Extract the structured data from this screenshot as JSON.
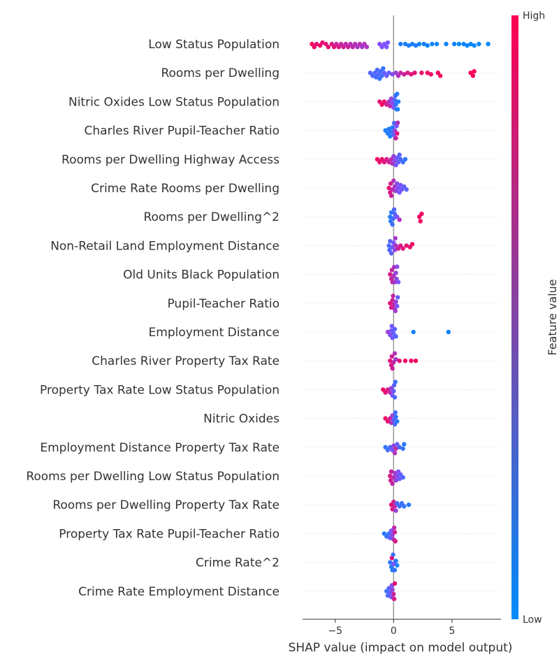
{
  "chart_data": {
    "type": "scatter",
    "subtype": "shap-beeswarm-summary",
    "title": "",
    "xlabel": "SHAP value (impact on model output)",
    "ylabel": "",
    "xlim": [
      -7.8,
      9.2
    ],
    "xticks": [
      -5,
      0,
      5
    ],
    "xtick_labels": [
      "−5",
      "0",
      "5"
    ],
    "grid": "dotted row guides",
    "zero_line": true,
    "colorbar": {
      "label": "Feature value",
      "high_label": "High",
      "low_label": "Low",
      "low_color": "#008bfb",
      "high_color": "#ff0052"
    },
    "features": [
      {
        "name": "Low Status Population",
        "points": [
          [
            -7.0,
            0.95
          ],
          [
            -6.8,
            0.92
          ],
          [
            -6.6,
            0.9
          ],
          [
            -6.3,
            0.95
          ],
          [
            -6.1,
            0.9
          ],
          [
            -5.8,
            0.88
          ],
          [
            -5.6,
            0.92
          ],
          [
            -5.3,
            0.85
          ],
          [
            -5.1,
            0.88
          ],
          [
            -4.9,
            0.8
          ],
          [
            -4.7,
            0.85
          ],
          [
            -4.5,
            0.78
          ],
          [
            -4.3,
            0.82
          ],
          [
            -4.1,
            0.75
          ],
          [
            -3.9,
            0.8
          ],
          [
            -3.7,
            0.72
          ],
          [
            -3.5,
            0.75
          ],
          [
            -3.3,
            0.7
          ],
          [
            -3.1,
            0.68
          ],
          [
            -2.9,
            0.72
          ],
          [
            -2.7,
            0.65
          ],
          [
            -2.5,
            0.7
          ],
          [
            -2.3,
            0.68
          ],
          [
            -1.2,
            0.55
          ],
          [
            -1.0,
            0.52
          ],
          [
            -0.8,
            0.5
          ],
          [
            -0.6,
            0.5
          ],
          [
            -0.5,
            0.48
          ],
          [
            0.6,
            0.15
          ],
          [
            1.0,
            0.1
          ],
          [
            1.3,
            0.12
          ],
          [
            1.6,
            0.08
          ],
          [
            1.9,
            0.12
          ],
          [
            2.2,
            0.05
          ],
          [
            2.6,
            0.1
          ],
          [
            2.9,
            0.05
          ],
          [
            3.3,
            0.08
          ],
          [
            3.7,
            0.05
          ],
          [
            4.5,
            0.04
          ],
          [
            5.2,
            0.05
          ],
          [
            5.6,
            0.03
          ],
          [
            6.0,
            0.04
          ],
          [
            6.3,
            0.03
          ],
          [
            6.6,
            0.02
          ],
          [
            6.9,
            0.02
          ],
          [
            7.3,
            0.03
          ],
          [
            8.1,
            0.02
          ]
        ]
      },
      {
        "name": "Rooms per Dwelling",
        "points": [
          [
            -2.0,
            0.35
          ],
          [
            -1.8,
            0.3
          ],
          [
            -1.6,
            0.33
          ],
          [
            -1.5,
            0.28
          ],
          [
            -1.4,
            0.3
          ],
          [
            -1.3,
            0.35
          ],
          [
            -1.2,
            0.22
          ],
          [
            -1.1,
            0.28
          ],
          [
            -1.0,
            0.25
          ],
          [
            -0.9,
            0.2
          ],
          [
            -0.8,
            0.4
          ],
          [
            -0.6,
            0.45
          ],
          [
            -0.4,
            0.4
          ],
          [
            -0.1,
            0.55
          ],
          [
            0.2,
            0.62
          ],
          [
            0.4,
            0.7
          ],
          [
            0.6,
            0.75
          ],
          [
            0.9,
            0.8
          ],
          [
            1.2,
            0.85
          ],
          [
            1.5,
            0.88
          ],
          [
            1.8,
            0.9
          ],
          [
            2.4,
            0.92
          ],
          [
            2.9,
            0.95
          ],
          [
            3.2,
            0.93
          ],
          [
            3.8,
            0.95
          ],
          [
            4.0,
            0.96
          ],
          [
            6.6,
            0.98
          ],
          [
            6.8,
            0.97
          ],
          [
            6.9,
            0.99
          ]
        ]
      },
      {
        "name": "Nitric Oxides Low Status Population",
        "points": [
          [
            -1.2,
            0.9
          ],
          [
            -1.0,
            0.95
          ],
          [
            -0.8,
            0.92
          ],
          [
            -0.6,
            0.8
          ],
          [
            -0.4,
            0.7
          ],
          [
            -0.3,
            0.75
          ],
          [
            -0.2,
            0.6
          ],
          [
            -0.1,
            0.55
          ],
          [
            0.0,
            0.5
          ],
          [
            0.1,
            0.3
          ],
          [
            0.2,
            0.2
          ],
          [
            0.3,
            0.15
          ],
          [
            0.4,
            0.1
          ],
          [
            0.35,
            0.12
          ],
          [
            0.25,
            0.18
          ],
          [
            0.15,
            0.25
          ]
        ]
      },
      {
        "name": "Charles River Pupil-Teacher Ratio",
        "points": [
          [
            -0.7,
            0.1
          ],
          [
            -0.5,
            0.12
          ],
          [
            -0.4,
            0.15
          ],
          [
            -0.3,
            0.1
          ],
          [
            -0.2,
            0.2
          ],
          [
            -0.1,
            0.15
          ],
          [
            0.0,
            0.4
          ],
          [
            0.1,
            0.6
          ],
          [
            0.2,
            0.8
          ],
          [
            0.3,
            0.9
          ],
          [
            0.35,
            0.7
          ],
          [
            0.25,
            0.5
          ],
          [
            0.15,
            0.45
          ],
          [
            0.05,
            0.3
          ]
        ]
      },
      {
        "name": "Rooms per Dwelling Highway Access",
        "points": [
          [
            -1.4,
            0.95
          ],
          [
            -1.2,
            0.9
          ],
          [
            -1.0,
            0.92
          ],
          [
            -0.8,
            0.88
          ],
          [
            -0.6,
            0.85
          ],
          [
            -0.4,
            0.8
          ],
          [
            -0.2,
            0.75
          ],
          [
            -0.1,
            0.7
          ],
          [
            0.0,
            0.6
          ],
          [
            0.2,
            0.5
          ],
          [
            0.4,
            0.4
          ],
          [
            0.6,
            0.3
          ],
          [
            0.8,
            0.25
          ],
          [
            1.0,
            0.2
          ],
          [
            0.5,
            0.35
          ],
          [
            0.3,
            0.45
          ],
          [
            0.1,
            0.55
          ]
        ]
      },
      {
        "name": "Crime Rate Rooms per Dwelling",
        "points": [
          [
            -0.4,
            0.9
          ],
          [
            -0.3,
            0.85
          ],
          [
            -0.2,
            0.8
          ],
          [
            -0.1,
            0.75
          ],
          [
            0.0,
            0.7
          ],
          [
            0.1,
            0.65
          ],
          [
            0.2,
            0.6
          ],
          [
            0.3,
            0.55
          ],
          [
            0.5,
            0.5
          ],
          [
            0.7,
            0.45
          ],
          [
            0.9,
            0.4
          ],
          [
            1.1,
            0.35
          ],
          [
            0.6,
            0.48
          ],
          [
            0.4,
            0.52
          ],
          [
            -0.25,
            0.82
          ]
        ]
      },
      {
        "name": "Rooms per Dwelling^2",
        "points": [
          [
            -0.3,
            0.15
          ],
          [
            -0.2,
            0.2
          ],
          [
            -0.1,
            0.25
          ],
          [
            0.0,
            0.3
          ],
          [
            0.1,
            0.35
          ],
          [
            0.3,
            0.5
          ],
          [
            0.5,
            0.7
          ],
          [
            2.2,
            0.95
          ],
          [
            2.3,
            0.97
          ],
          [
            2.4,
            0.96
          ],
          [
            -0.25,
            0.18
          ],
          [
            0.05,
            0.32
          ]
        ]
      },
      {
        "name": "Non-Retail Land Employment Distance",
        "points": [
          [
            -0.4,
            0.3
          ],
          [
            -0.3,
            0.35
          ],
          [
            -0.2,
            0.4
          ],
          [
            -0.1,
            0.45
          ],
          [
            0.0,
            0.5
          ],
          [
            0.1,
            0.6
          ],
          [
            0.2,
            0.7
          ],
          [
            0.4,
            0.8
          ],
          [
            0.6,
            0.85
          ],
          [
            0.8,
            0.88
          ],
          [
            1.1,
            0.9
          ],
          [
            1.4,
            0.92
          ],
          [
            1.6,
            0.95
          ],
          [
            -0.35,
            0.32
          ],
          [
            0.15,
            0.65
          ]
        ]
      },
      {
        "name": "Old Units Black Population",
        "points": [
          [
            -0.3,
            0.85
          ],
          [
            -0.2,
            0.8
          ],
          [
            -0.1,
            0.75
          ],
          [
            0.0,
            0.7
          ],
          [
            0.1,
            0.65
          ],
          [
            0.2,
            0.6
          ],
          [
            0.3,
            0.55
          ],
          [
            0.4,
            0.5
          ],
          [
            0.25,
            0.58
          ],
          [
            -0.15,
            0.78
          ],
          [
            0.05,
            0.68
          ]
        ]
      },
      {
        "name": "Pupil-Teacher Ratio",
        "points": [
          [
            -0.3,
            0.9
          ],
          [
            -0.2,
            0.85
          ],
          [
            -0.1,
            0.8
          ],
          [
            0.0,
            0.75
          ],
          [
            0.1,
            0.7
          ],
          [
            0.2,
            0.6
          ],
          [
            0.3,
            0.5
          ],
          [
            0.35,
            0.4
          ],
          [
            0.15,
            0.65
          ],
          [
            -0.05,
            0.78
          ]
        ]
      },
      {
        "name": "Employment Distance",
        "points": [
          [
            -0.5,
            0.6
          ],
          [
            -0.3,
            0.55
          ],
          [
            -0.2,
            0.5
          ],
          [
            -0.1,
            0.45
          ],
          [
            0.0,
            0.4
          ],
          [
            0.1,
            0.35
          ],
          [
            0.2,
            0.3
          ],
          [
            1.7,
            0.1
          ],
          [
            4.7,
            0.05
          ],
          [
            -0.15,
            0.48
          ]
        ]
      },
      {
        "name": "Charles River Property Tax Rate",
        "points": [
          [
            -0.3,
            0.9
          ],
          [
            -0.2,
            0.85
          ],
          [
            -0.1,
            0.8
          ],
          [
            0.0,
            0.75
          ],
          [
            0.1,
            0.7
          ],
          [
            0.2,
            0.65
          ],
          [
            0.5,
            0.9
          ],
          [
            1.0,
            0.95
          ],
          [
            1.5,
            0.92
          ],
          [
            1.9,
            0.95
          ],
          [
            -0.15,
            0.82
          ]
        ]
      },
      {
        "name": "Property Tax Rate Low Status Population",
        "points": [
          [
            -0.9,
            0.95
          ],
          [
            -0.7,
            0.9
          ],
          [
            -0.5,
            0.85
          ],
          [
            -0.3,
            0.7
          ],
          [
            -0.1,
            0.5
          ],
          [
            0.0,
            0.4
          ],
          [
            0.1,
            0.3
          ],
          [
            0.15,
            0.25
          ],
          [
            0.05,
            0.35
          ],
          [
            -0.2,
            0.6
          ]
        ]
      },
      {
        "name": "Nitric Oxides",
        "points": [
          [
            -0.7,
            0.95
          ],
          [
            -0.5,
            0.9
          ],
          [
            -0.3,
            0.8
          ],
          [
            -0.1,
            0.6
          ],
          [
            0.0,
            0.4
          ],
          [
            0.1,
            0.3
          ],
          [
            0.2,
            0.2
          ],
          [
            0.3,
            0.15
          ],
          [
            0.15,
            0.25
          ],
          [
            -0.2,
            0.7
          ]
        ]
      },
      {
        "name": "Employment Distance Property Tax Rate",
        "points": [
          [
            -0.7,
            0.2
          ],
          [
            -0.5,
            0.25
          ],
          [
            -0.3,
            0.3
          ],
          [
            -0.1,
            0.5
          ],
          [
            0.0,
            0.6
          ],
          [
            0.1,
            0.7
          ],
          [
            0.2,
            0.75
          ],
          [
            0.5,
            0.3
          ],
          [
            0.8,
            0.2
          ],
          [
            0.9,
            0.15
          ],
          [
            0.3,
            0.4
          ]
        ]
      },
      {
        "name": "Rooms per Dwelling Low Status Population",
        "points": [
          [
            -0.3,
            0.85
          ],
          [
            -0.2,
            0.8
          ],
          [
            -0.1,
            0.75
          ],
          [
            0.0,
            0.7
          ],
          [
            0.1,
            0.65
          ],
          [
            0.2,
            0.6
          ],
          [
            0.4,
            0.5
          ],
          [
            0.6,
            0.4
          ],
          [
            0.8,
            0.3
          ],
          [
            0.5,
            0.45
          ],
          [
            -0.25,
            0.82
          ],
          [
            0.3,
            0.55
          ]
        ]
      },
      {
        "name": "Rooms per Dwelling Property Tax Rate",
        "points": [
          [
            -0.2,
            0.9
          ],
          [
            -0.1,
            0.85
          ],
          [
            0.0,
            0.8
          ],
          [
            0.1,
            0.75
          ],
          [
            0.3,
            0.3
          ],
          [
            0.5,
            0.25
          ],
          [
            0.7,
            0.2
          ],
          [
            0.9,
            0.2
          ],
          [
            1.3,
            0.15
          ],
          [
            0.2,
            0.6
          ]
        ]
      },
      {
        "name": "Property Tax Rate Pupil-Teacher Ratio",
        "points": [
          [
            -0.8,
            0.15
          ],
          [
            -0.6,
            0.2
          ],
          [
            -0.4,
            0.25
          ],
          [
            -0.2,
            0.5
          ],
          [
            -0.1,
            0.6
          ],
          [
            0.0,
            0.7
          ],
          [
            0.1,
            0.8
          ],
          [
            0.15,
            0.85
          ],
          [
            0.05,
            0.75
          ],
          [
            -0.3,
            0.4
          ]
        ]
      },
      {
        "name": "Crime Rate^2",
        "points": [
          [
            -0.3,
            0.2
          ],
          [
            -0.2,
            0.15
          ],
          [
            -0.1,
            0.1
          ],
          [
            0.0,
            0.5
          ],
          [
            0.1,
            0.2
          ],
          [
            0.2,
            0.15
          ],
          [
            0.3,
            0.1
          ],
          [
            -0.15,
            0.9
          ],
          [
            0.05,
            0.3
          ],
          [
            -0.05,
            0.25
          ]
        ]
      },
      {
        "name": "Crime Rate Employment Distance",
        "points": [
          [
            -0.6,
            0.25
          ],
          [
            -0.5,
            0.3
          ],
          [
            -0.4,
            0.35
          ],
          [
            -0.3,
            0.4
          ],
          [
            -0.2,
            0.5
          ],
          [
            -0.1,
            0.6
          ],
          [
            0.0,
            0.8
          ],
          [
            0.1,
            0.9
          ],
          [
            0.05,
            0.85
          ],
          [
            -0.15,
            0.55
          ]
        ]
      }
    ]
  }
}
